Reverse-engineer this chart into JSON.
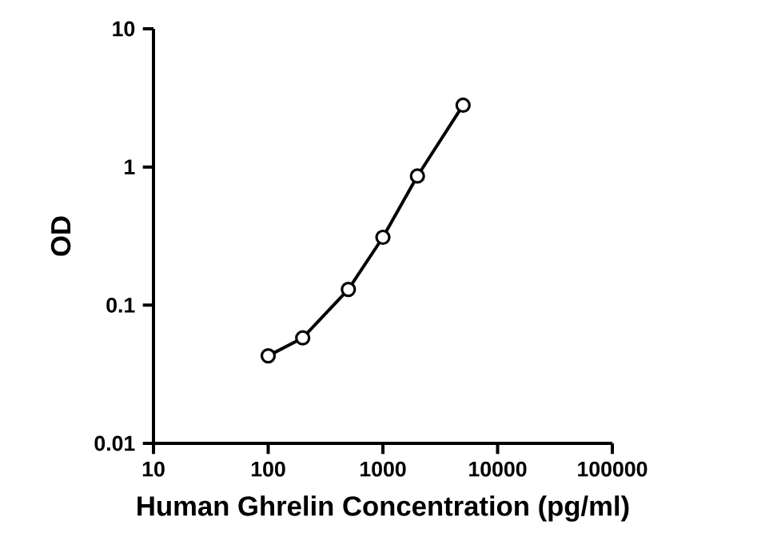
{
  "chart_data": {
    "type": "line",
    "xlabel": "Human Ghrelin Concentration (pg/ml)",
    "ylabel": "OD",
    "log": "xy",
    "marker": "circle",
    "line_style": "solid",
    "grid": false,
    "x": [
      100,
      200,
      500,
      1000,
      2000,
      5000
    ],
    "series": [
      {
        "color": "#000000",
        "values": [
          0.043,
          0.058,
          0.13,
          0.31,
          0.86,
          2.8
        ]
      }
    ],
    "xlim": [
      10,
      100000
    ],
    "xticks": [
      10,
      100,
      1000,
      10000,
      100000
    ],
    "ylim": [
      0.01,
      10
    ],
    "yticks": [
      0.01,
      0.1,
      1,
      10
    ]
  }
}
